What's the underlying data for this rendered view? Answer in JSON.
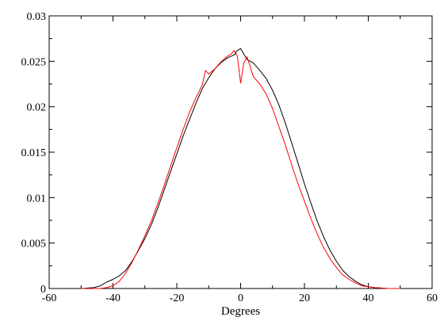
{
  "chart_data": {
    "type": "line",
    "title": "",
    "xlabel": "Degrees",
    "ylabel": "",
    "xlim": [
      -60,
      60
    ],
    "ylim": [
      0,
      0.03
    ],
    "xticks": [
      -60,
      -40,
      -20,
      0,
      20,
      40,
      60
    ],
    "yticks": [
      0,
      0.005,
      0.01,
      0.015,
      0.02,
      0.025,
      0.03
    ],
    "xtick_labels": [
      "-60",
      "-40",
      "-20",
      "0",
      "20",
      "40",
      "60"
    ],
    "ytick_labels": [
      "0",
      "0.005",
      "0.01",
      "0.015",
      "0.02",
      "0.025",
      "0.03"
    ],
    "grid": false,
    "legend": "none",
    "series": [
      {
        "color": "#000000",
        "x": [
          -50,
          -46,
          -44,
          -42,
          -40,
          -38,
          -36,
          -34,
          -32,
          -30,
          -28,
          -26,
          -24,
          -22,
          -20,
          -18,
          -16,
          -14,
          -12,
          -10,
          -8,
          -6,
          -4,
          -2,
          -1,
          0,
          1,
          2,
          3,
          4,
          6,
          8,
          10,
          12,
          14,
          16,
          18,
          20,
          22,
          24,
          26,
          28,
          30,
          32,
          34,
          36,
          38,
          40,
          42,
          44,
          46,
          50
        ],
        "y": [
          0,
          0.0001,
          0.0003,
          0.0007,
          0.001,
          0.0014,
          0.002,
          0.003,
          0.0042,
          0.0055,
          0.007,
          0.0088,
          0.0108,
          0.0128,
          0.0148,
          0.0168,
          0.0186,
          0.0204,
          0.022,
          0.0232,
          0.0242,
          0.0249,
          0.0254,
          0.0257,
          0.0262,
          0.0264,
          0.0258,
          0.0252,
          0.025,
          0.0248,
          0.024,
          0.0231,
          0.0218,
          0.0202,
          0.0182,
          0.016,
          0.0138,
          0.0115,
          0.0094,
          0.0074,
          0.0057,
          0.0042,
          0.003,
          0.002,
          0.0013,
          0.0008,
          0.0004,
          0.0002,
          0.0001,
          5e-05,
          0,
          0
        ]
      },
      {
        "color": "#ff0000",
        "x": [
          -50,
          -46,
          -44,
          -42,
          -40,
          -38,
          -36,
          -34,
          -32,
          -30,
          -28,
          -26,
          -24,
          -22,
          -20,
          -18,
          -16,
          -14,
          -12,
          -11,
          -10,
          -8,
          -6,
          -4,
          -3,
          -2,
          -1,
          0,
          1,
          2,
          3,
          4,
          6,
          8,
          10,
          12,
          14,
          16,
          18,
          20,
          22,
          24,
          26,
          28,
          30,
          32,
          34,
          36,
          38,
          40,
          42,
          44,
          46,
          50
        ],
        "y": [
          0,
          0,
          0,
          0.0001,
          0.0003,
          0.0008,
          0.0017,
          0.0029,
          0.0043,
          0.0058,
          0.0074,
          0.0093,
          0.0113,
          0.0134,
          0.0155,
          0.0175,
          0.0194,
          0.021,
          0.0224,
          0.024,
          0.0236,
          0.0242,
          0.025,
          0.0256,
          0.0258,
          0.0262,
          0.0255,
          0.0226,
          0.0248,
          0.0255,
          0.0244,
          0.0233,
          0.0225,
          0.0214,
          0.0198,
          0.0178,
          0.0158,
          0.0136,
          0.0115,
          0.0096,
          0.0077,
          0.006,
          0.0045,
          0.0033,
          0.0023,
          0.0015,
          0.001,
          0.0006,
          0.0003,
          0.0002,
          0.0001,
          5e-05,
          0,
          0
        ]
      }
    ]
  }
}
